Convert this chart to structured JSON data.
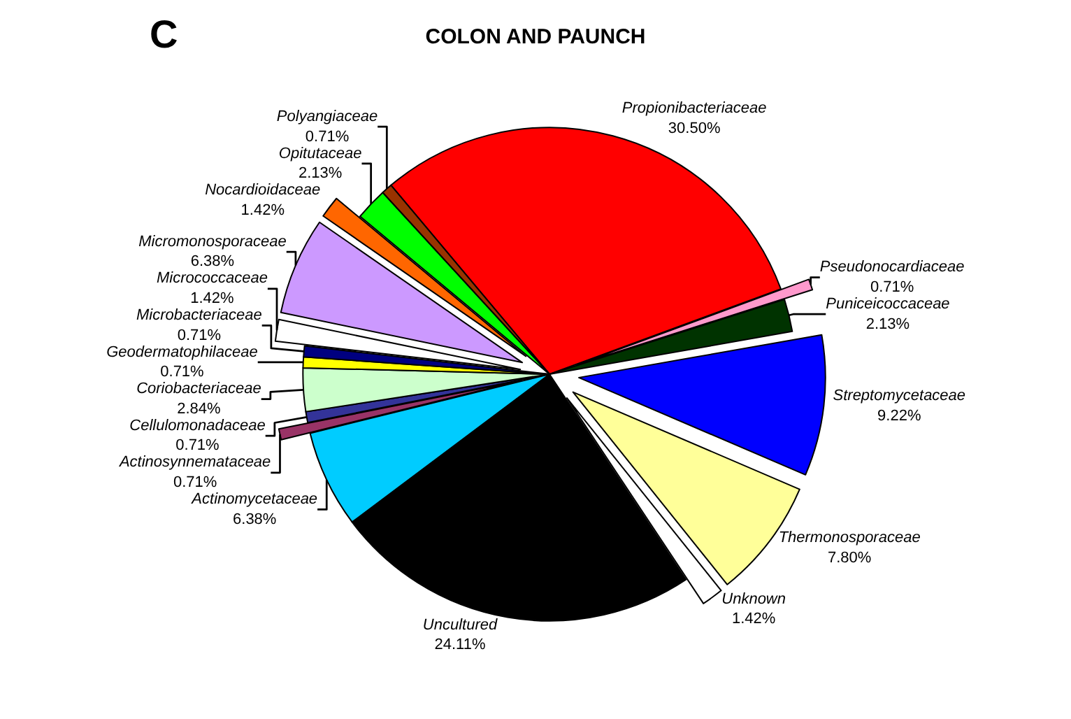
{
  "chart_data": {
    "type": "pie",
    "title": "COLON AND PAUNCH",
    "annotations": [
      "C"
    ],
    "categories": [
      "Propionibacteriaceae",
      "Pseudonocardiaceae",
      "Puniceicoccaceae",
      "Streptomycetaceae",
      "Thermonosporaceae",
      "Unknown",
      "Uncultured",
      "Actinomycetaceae",
      "Actinosynnemataceae",
      "Cellulomonadaceae",
      "Coriobacteriaceae",
      "Geodermatophilaceae",
      "Microbacteriaceae",
      "Micrococcaceae",
      "Micromonosporaceae",
      "Nocardioidaceae",
      "Opitutaceae",
      "Polyangiaceae"
    ],
    "values": [
      30.5,
      0.71,
      2.13,
      9.22,
      7.8,
      1.42,
      24.11,
      6.38,
      0.71,
      0.71,
      2.84,
      0.71,
      0.71,
      1.42,
      6.38,
      1.42,
      2.13,
      0.71
    ],
    "value_labels": [
      "30.50%",
      "0.71%",
      "2.13%",
      "9.22%",
      "7.80%",
      "1.42%",
      "24.11%",
      "6.38%",
      "0.71%",
      "0.71%",
      "2.84%",
      "0.71%",
      "0.71%",
      "1.42%",
      "6.38%",
      "1.42%",
      "2.13%",
      "0.71%"
    ],
    "colors": [
      "#ff0000",
      "#ff99cc",
      "#003300",
      "#0000ff",
      "#ffff99",
      "#ffffff",
      "#000000",
      "#00ccff",
      "#993366",
      "#333399",
      "#ccffcc",
      "#ffff00",
      "#000080",
      "#ffffff",
      "#cc99ff",
      "#ff6600",
      "#00ff00",
      "#993300"
    ],
    "legend": false
  }
}
